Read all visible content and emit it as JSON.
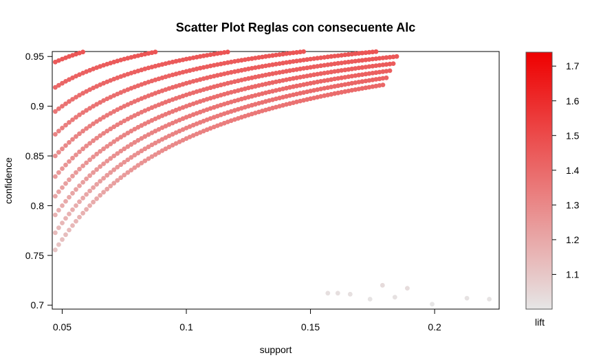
{
  "chart_data": {
    "type": "scatter",
    "title": "Scatter Plot Reglas con consecuente Alc",
    "xlabel": "support",
    "ylabel": "confidence",
    "xlim": [
      0.046,
      0.226
    ],
    "ylim": [
      0.696,
      0.955
    ],
    "xticks": [
      {
        "value": 0.05,
        "label": "0.05"
      },
      {
        "value": 0.1,
        "label": "0.1"
      },
      {
        "value": 0.15,
        "label": "0.15"
      },
      {
        "value": 0.2,
        "label": "0.2"
      }
    ],
    "yticks": [
      {
        "value": 0.7,
        "label": "0.7"
      },
      {
        "value": 0.75,
        "label": "0.75"
      },
      {
        "value": 0.8,
        "label": "0.8"
      },
      {
        "value": 0.85,
        "label": "0.85"
      },
      {
        "value": 0.9,
        "label": "0.9"
      },
      {
        "value": 0.95,
        "label": "0.95"
      }
    ],
    "color_scale": {
      "label": "lift",
      "range": [
        1.0,
        1.74
      ],
      "low_color": "#e6e6e6",
      "high_color": "#ee0000",
      "ticks": [
        {
          "value": 1.1,
          "label": "1.1"
        },
        {
          "value": 1.2,
          "label": "1.2"
        },
        {
          "value": 1.3,
          "label": "1.3"
        },
        {
          "value": 1.4,
          "label": "1.4"
        },
        {
          "value": 1.5,
          "label": "1.5"
        },
        {
          "value": 1.6,
          "label": "1.6"
        },
        {
          "value": 1.7,
          "label": "1.7"
        }
      ]
    },
    "structure": {
      "n_min": 36,
      "n_max": 140,
      "k_offset": -11,
      "base_support": 0.001389,
      "lift_slope": 1.84,
      "extra_points": [
        {
          "x": 0.179,
          "y": 0.72
        },
        {
          "x": 0.189,
          "y": 0.717
        },
        {
          "x": 0.213,
          "y": 0.707
        },
        {
          "x": 0.222,
          "y": 0.706
        },
        {
          "x": 0.199,
          "y": 0.701
        },
        {
          "x": 0.174,
          "y": 0.706
        },
        {
          "x": 0.184,
          "y": 0.708
        },
        {
          "x": 0.166,
          "y": 0.711
        },
        {
          "x": 0.161,
          "y": 0.712
        },
        {
          "x": 0.157,
          "y": 0.712
        }
      ]
    }
  }
}
